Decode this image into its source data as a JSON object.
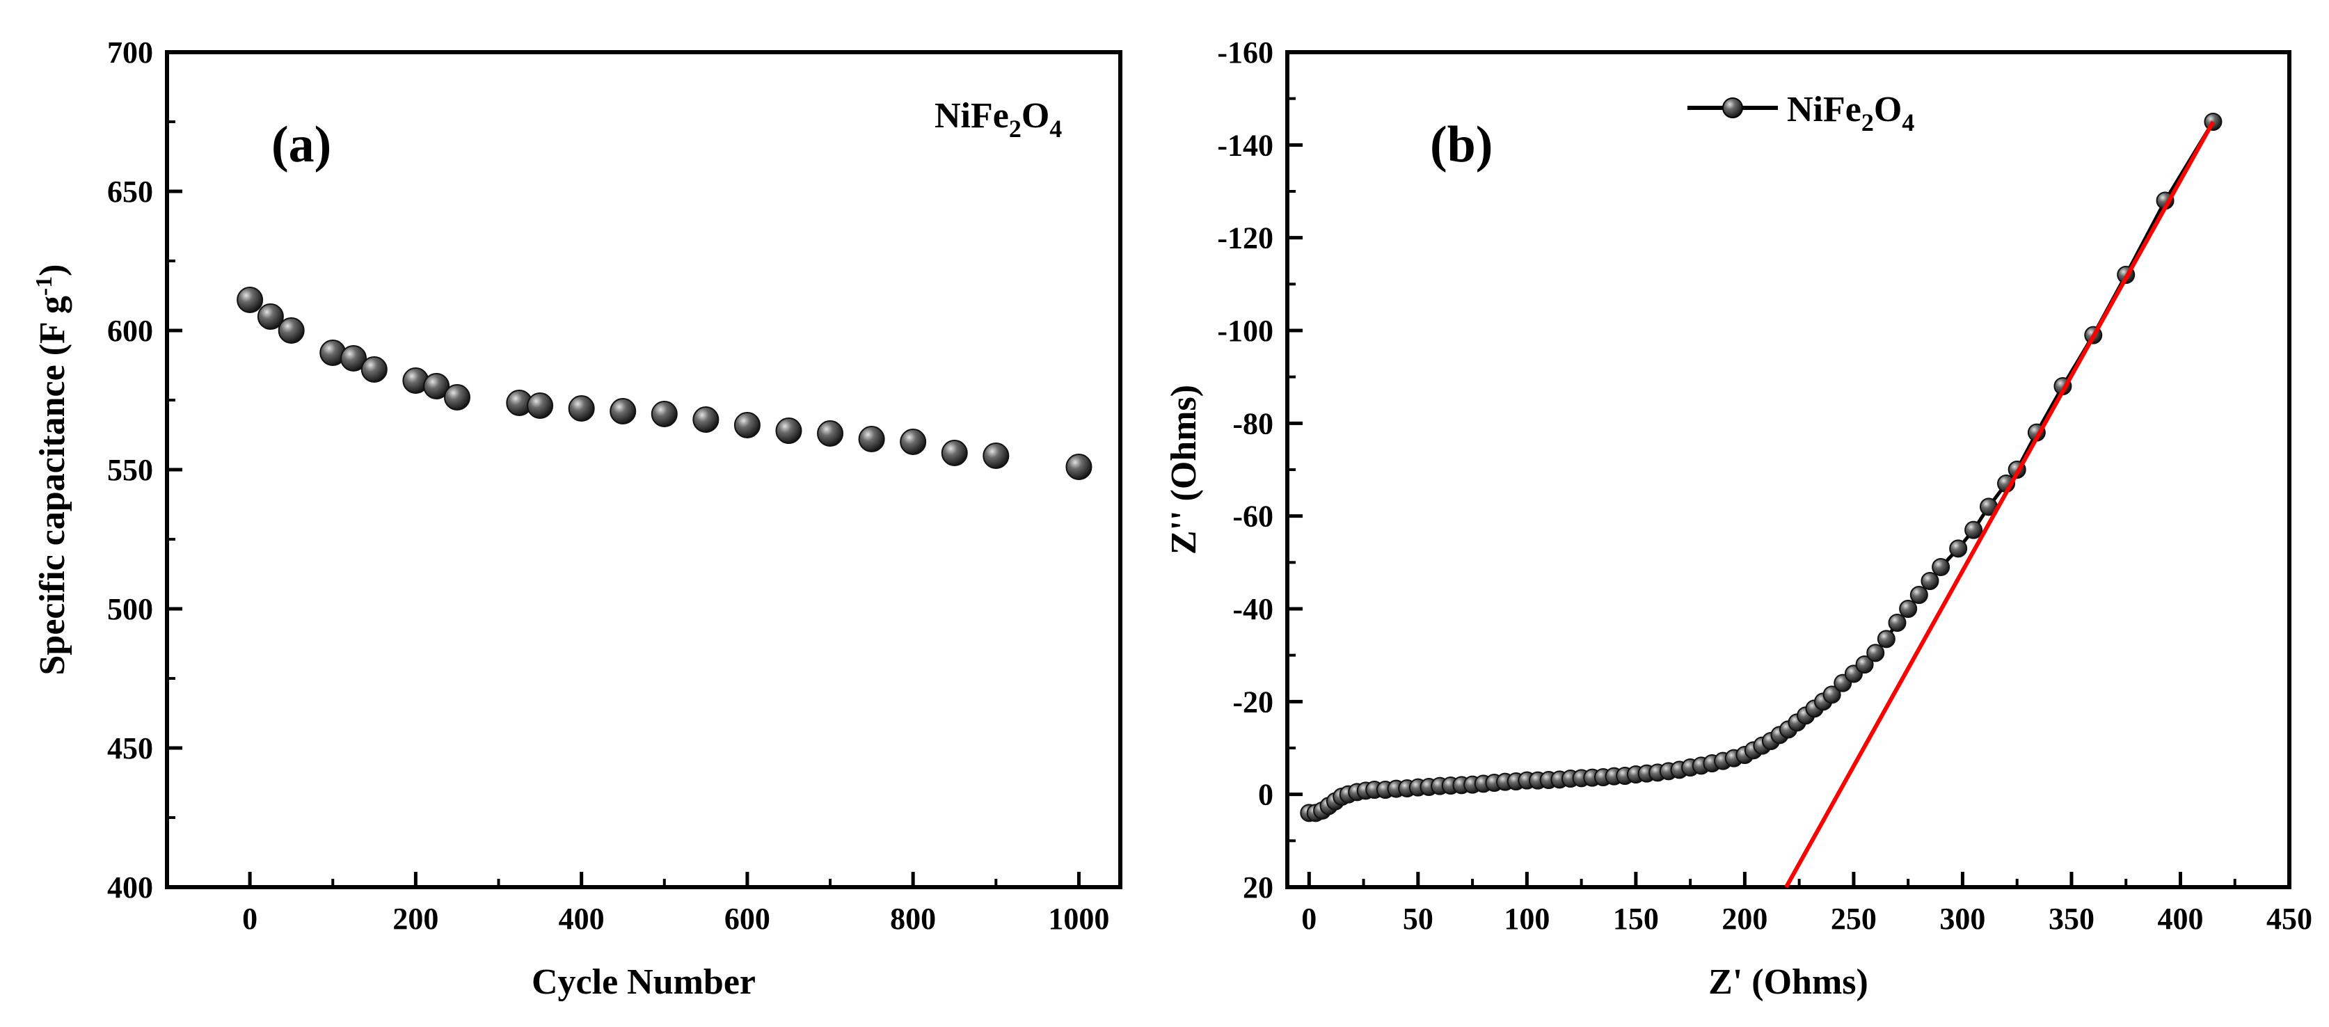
{
  "colors": {
    "axis": "#000000",
    "marker": "#222222",
    "marker_highlight": "#cfcfcf",
    "fit_line": "#ff0000"
  },
  "chart_data": [
    {
      "type": "scatter",
      "panel_label": "(a)",
      "annotation": {
        "base": "NiFe",
        "sub1": "2",
        "mid": "O",
        "sub2": "4"
      },
      "xlabel": "Cycle Number",
      "ylabel": {
        "main": "Specific capacitance (F g",
        "sup": "-1",
        "end": ")"
      },
      "xlim": [
        -100,
        1050
      ],
      "ylim": [
        400,
        700
      ],
      "xticks": [
        0,
        200,
        400,
        600,
        800,
        1000
      ],
      "yticks": [
        400,
        450,
        500,
        550,
        600,
        650,
        700
      ],
      "grid": false,
      "series": [
        {
          "name": "NiFe2O4",
          "x": [
            0,
            25,
            50,
            100,
            125,
            150,
            200,
            225,
            250,
            325,
            350,
            400,
            450,
            500,
            550,
            600,
            650,
            700,
            750,
            800,
            850,
            900,
            1000
          ],
          "y": [
            611,
            605,
            600,
            592,
            590,
            586,
            582,
            580,
            576,
            574,
            573,
            572,
            571,
            570,
            568,
            566,
            564,
            563,
            561,
            560,
            556,
            555,
            551
          ]
        }
      ]
    },
    {
      "type": "line",
      "panel_label": "(b)",
      "xlabel": "Z' (Ohms)",
      "ylabel": "Z'' (Ohms)",
      "xlim": [
        -10,
        450
      ],
      "ylim": [
        20,
        -160
      ],
      "xticks": [
        0,
        50,
        100,
        150,
        200,
        250,
        300,
        350,
        400,
        450
      ],
      "yticks": [
        20,
        0,
        -20,
        -40,
        -60,
        -80,
        -100,
        -120,
        -140,
        -160
      ],
      "grid": false,
      "legend": {
        "base": "NiFe",
        "sub1": "2",
        "mid": "O",
        "sub2": "4",
        "position": "top-center"
      },
      "series": [
        {
          "name": "NiFe2O4",
          "x": [
            0,
            3,
            6,
            9,
            12,
            15,
            18,
            22,
            26,
            30,
            35,
            40,
            45,
            50,
            55,
            60,
            65,
            70,
            75,
            80,
            85,
            90,
            95,
            100,
            105,
            110,
            115,
            120,
            125,
            130,
            135,
            140,
            145,
            150,
            155,
            160,
            165,
            170,
            175,
            180,
            185,
            190,
            195,
            200,
            204,
            208,
            212,
            216,
            220,
            224,
            228,
            232,
            236,
            240,
            245,
            250,
            255,
            260,
            265,
            270,
            275,
            280,
            285,
            290,
            298,
            305,
            312,
            320,
            325,
            334,
            346,
            360,
            375,
            393,
            415
          ],
          "y": [
            4,
            4,
            3.5,
            2.5,
            1.5,
            0.5,
            0,
            -0.5,
            -0.8,
            -1,
            -1,
            -1.2,
            -1.3,
            -1.5,
            -1.6,
            -1.8,
            -1.9,
            -2,
            -2.1,
            -2.3,
            -2.5,
            -2.7,
            -2.8,
            -3,
            -3,
            -3.1,
            -3.2,
            -3.4,
            -3.5,
            -3.6,
            -3.7,
            -3.9,
            -4,
            -4.3,
            -4.5,
            -4.7,
            -5,
            -5.3,
            -5.8,
            -6.2,
            -6.7,
            -7.2,
            -7.8,
            -8.5,
            -9.5,
            -10.5,
            -11.5,
            -12.8,
            -14,
            -15.5,
            -17,
            -18.5,
            -20,
            -21.5,
            -24,
            -26,
            -28,
            -30.5,
            -33.5,
            -37,
            -40,
            -43,
            -46,
            -49,
            -53,
            -57,
            -62,
            -67,
            -70,
            -78,
            -88,
            -99,
            -112,
            -128,
            -145
          ]
        },
        {
          "name": "Linear fit",
          "x": [
            219,
            415
          ],
          "y": [
            20,
            -145
          ]
        }
      ]
    }
  ]
}
